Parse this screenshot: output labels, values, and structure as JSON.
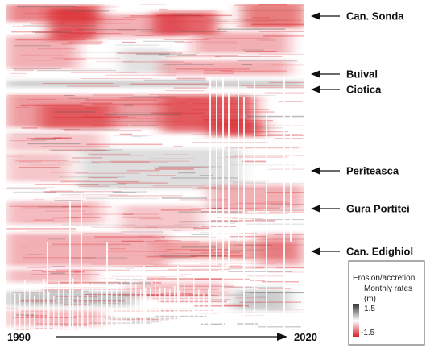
{
  "chart_data": {
    "type": "heatmap",
    "x_start_label": "1990",
    "x_end_label": "2020",
    "row_labels": [
      "Can. Sonda",
      "Buival",
      "Ciotica",
      "Periteasca",
      "Gura Portitei",
      "Can. Edighiol"
    ],
    "legend": {
      "title_line1": "Erosion/accretion",
      "title_line2": "Monthly rates",
      "title_line3": "(m)",
      "max_label": "1.5",
      "min_label": "-1.5",
      "max_value": 1.5,
      "min_value": -1.5,
      "color_high": "#3a3a3a",
      "color_mid": "#ffffff",
      "color_low": "#d9232a"
    }
  }
}
